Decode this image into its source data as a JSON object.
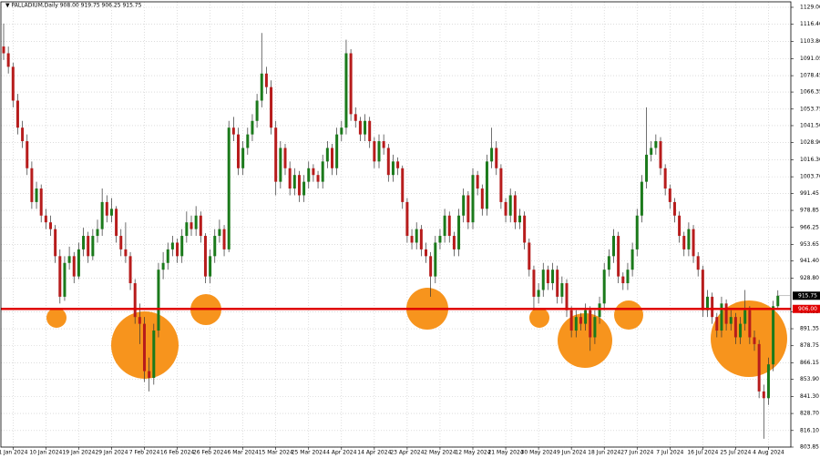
{
  "chart_data": {
    "type": "candlestick",
    "title": "▼ PALLADIUM,Daily  908.00 919.75 906.25 915.75",
    "up_color": "#1b7a1b",
    "down_color": "#b71c1c",
    "wick_color": "#333333",
    "grid": true,
    "ylim": [
      803.85,
      1129
    ],
    "yticks": [
      {
        "value": 1129,
        "label": "1129.00"
      },
      {
        "value": 1116.4,
        "label": "1116.40"
      },
      {
        "value": 1103.8,
        "label": "1103.80"
      },
      {
        "value": 1091.05,
        "label": "1091.05"
      },
      {
        "value": 1078.45,
        "label": "1078.45"
      },
      {
        "value": 1066.35,
        "label": "1066.35"
      },
      {
        "value": 1053.75,
        "label": "1053.75"
      },
      {
        "value": 1041.5,
        "label": "1041.50"
      },
      {
        "value": 1028.9,
        "label": "1028.90"
      },
      {
        "value": 1016.3,
        "label": "1016.30"
      },
      {
        "value": 1003.7,
        "label": "1003.70"
      },
      {
        "value": 991.45,
        "label": "991.45"
      },
      {
        "value": 978.85,
        "label": "978.85"
      },
      {
        "value": 966.25,
        "label": "966.25"
      },
      {
        "value": 953.65,
        "label": "953.65"
      },
      {
        "value": 941.4,
        "label": "941.40"
      },
      {
        "value": 928.8,
        "label": "928.80"
      },
      {
        "value": 903.95,
        "label": "903.95"
      },
      {
        "value": 891.35,
        "label": "891.35"
      },
      {
        "value": 878.75,
        "label": "878.75"
      },
      {
        "value": 866.15,
        "label": "866.15"
      },
      {
        "value": 853.9,
        "label": "853.90"
      },
      {
        "value": 841.3,
        "label": "841.30"
      },
      {
        "value": 828.7,
        "label": "828.70"
      },
      {
        "value": 816.1,
        "label": "816.10"
      },
      {
        "value": 803.85,
        "label": "803.85"
      }
    ],
    "hline": {
      "value": 906,
      "label": "906.00",
      "color": "#e00000"
    },
    "last_price": {
      "value": 915.75,
      "label": "915.75"
    },
    "categories": [
      null,
      null,
      "1 Jan 2024",
      null,
      null,
      null,
      null,
      null,
      null,
      "10 Jan 2024",
      null,
      null,
      null,
      null,
      null,
      null,
      "19 Jan 2024",
      null,
      null,
      null,
      null,
      null,
      null,
      "29 Jan 2024",
      null,
      null,
      null,
      null,
      null,
      null,
      "7 Feb 2024",
      null,
      null,
      null,
      null,
      null,
      null,
      "16 Feb 2024",
      null,
      null,
      null,
      null,
      null,
      null,
      "26 Feb 2024",
      null,
      null,
      null,
      null,
      null,
      null,
      "6 Mar 2024",
      null,
      null,
      null,
      null,
      null,
      null,
      "15 Mar 2024",
      null,
      null,
      null,
      null,
      null,
      null,
      "25 Mar 2024",
      null,
      null,
      null,
      null,
      null,
      null,
      "4 Apr 2024",
      null,
      null,
      null,
      null,
      null,
      null,
      "14 Apr 2024",
      null,
      null,
      null,
      null,
      null,
      null,
      "23 Apr 2024",
      null,
      null,
      null,
      null,
      null,
      null,
      "2 May 2024",
      null,
      null,
      null,
      null,
      null,
      null,
      "12 May 2024",
      null,
      null,
      null,
      null,
      null,
      null,
      "21 May 2024",
      null,
      null,
      null,
      null,
      null,
      null,
      "30 May 2024",
      null,
      null,
      null,
      null,
      null,
      null,
      "9 Jun 2024",
      null,
      null,
      null,
      null,
      null,
      null,
      "18 Jun 2024",
      null,
      null,
      null,
      null,
      null,
      null,
      "27 Jun 2024",
      null,
      null,
      null,
      null,
      null,
      null,
      "7 Jul 2024",
      null,
      null,
      null,
      null,
      null,
      null,
      "16 Jul 2024",
      null,
      null,
      null,
      null,
      null,
      null,
      "25 Jul 2024",
      null,
      null,
      null,
      null,
      null,
      null,
      "4 Aug 2024",
      null,
      null
    ],
    "candles": [
      [
        1100,
        1117,
        1090,
        1095
      ],
      [
        1095,
        1100,
        1080,
        1085
      ],
      [
        1085,
        1088,
        1055,
        1060
      ],
      [
        1060,
        1065,
        1035,
        1040
      ],
      [
        1040,
        1045,
        1025,
        1030
      ],
      [
        1030,
        1035,
        1005,
        1010
      ],
      [
        1010,
        1015,
        980,
        985
      ],
      [
        985,
        1000,
        980,
        995
      ],
      [
        995,
        998,
        970,
        975
      ],
      [
        975,
        980,
        965,
        970
      ],
      [
        970,
        975,
        960,
        965
      ],
      [
        965,
        968,
        940,
        945
      ],
      [
        945,
        950,
        910,
        915
      ],
      [
        915,
        945,
        912,
        940
      ],
      [
        940,
        952,
        935,
        945
      ],
      [
        945,
        948,
        925,
        930
      ],
      [
        930,
        955,
        928,
        950
      ],
      [
        950,
        966,
        945,
        960
      ],
      [
        960,
        963,
        940,
        945
      ],
      [
        945,
        965,
        942,
        960
      ],
      [
        960,
        972,
        955,
        965
      ],
      [
        965,
        995,
        960,
        985
      ],
      [
        985,
        990,
        970,
        975
      ],
      [
        975,
        988,
        970,
        980
      ],
      [
        980,
        982,
        955,
        960
      ],
      [
        960,
        965,
        945,
        950
      ],
      [
        950,
        970,
        940,
        945
      ],
      [
        945,
        948,
        920,
        925
      ],
      [
        925,
        928,
        895,
        900
      ],
      [
        900,
        910,
        880,
        895
      ],
      [
        895,
        900,
        852,
        860
      ],
      [
        860,
        870,
        845,
        855
      ],
      [
        855,
        895,
        850,
        890
      ],
      [
        890,
        940,
        885,
        935
      ],
      [
        935,
        948,
        928,
        940
      ],
      [
        940,
        955,
        935,
        950
      ],
      [
        950,
        960,
        945,
        955
      ],
      [
        955,
        958,
        940,
        945
      ],
      [
        945,
        965,
        940,
        960
      ],
      [
        960,
        978,
        955,
        970
      ],
      [
        970,
        975,
        960,
        965
      ],
      [
        965,
        982,
        960,
        975
      ],
      [
        975,
        978,
        955,
        960
      ],
      [
        960,
        962,
        925,
        930
      ],
      [
        930,
        950,
        925,
        945
      ],
      [
        945,
        965,
        940,
        960
      ],
      [
        960,
        972,
        955,
        965
      ],
      [
        965,
        968,
        945,
        950
      ],
      [
        950,
        1045,
        948,
        1040
      ],
      [
        1040,
        1048,
        1030,
        1035
      ],
      [
        1035,
        1040,
        1005,
        1010
      ],
      [
        1010,
        1030,
        1005,
        1025
      ],
      [
        1025,
        1040,
        1020,
        1035
      ],
      [
        1035,
        1050,
        1030,
        1045
      ],
      [
        1045,
        1065,
        1040,
        1060
      ],
      [
        1060,
        1110,
        1055,
        1080
      ],
      [
        1080,
        1085,
        1065,
        1070
      ],
      [
        1070,
        1075,
        1035,
        1040
      ],
      [
        1040,
        1045,
        990,
        1000
      ],
      [
        1000,
        1030,
        995,
        1025
      ],
      [
        1025,
        1028,
        1005,
        1010
      ],
      [
        1010,
        1015,
        990,
        995
      ],
      [
        995,
        1010,
        990,
        1005
      ],
      [
        1005,
        1008,
        985,
        990
      ],
      [
        990,
        1005,
        985,
        1000
      ],
      [
        1000,
        1015,
        995,
        1010
      ],
      [
        1010,
        1013,
        1000,
        1005
      ],
      [
        1005,
        1008,
        995,
        1000
      ],
      [
        1000,
        1020,
        995,
        1015
      ],
      [
        1015,
        1030,
        1010,
        1025
      ],
      [
        1025,
        1028,
        1005,
        1010
      ],
      [
        1010,
        1040,
        1005,
        1035
      ],
      [
        1035,
        1045,
        1030,
        1040
      ],
      [
        1040,
        1105,
        1035,
        1095
      ],
      [
        1095,
        1098,
        1045,
        1050
      ],
      [
        1050,
        1055,
        1040,
        1045
      ],
      [
        1045,
        1048,
        1030,
        1035
      ],
      [
        1035,
        1050,
        1030,
        1045
      ],
      [
        1045,
        1048,
        1025,
        1030
      ],
      [
        1030,
        1033,
        1010,
        1015
      ],
      [
        1015,
        1035,
        1010,
        1030
      ],
      [
        1030,
        1035,
        1020,
        1025
      ],
      [
        1025,
        1028,
        1000,
        1005
      ],
      [
        1005,
        1020,
        1000,
        1015
      ],
      [
        1015,
        1018,
        1005,
        1010
      ],
      [
        1010,
        1012,
        980,
        985
      ],
      [
        985,
        988,
        955,
        960
      ],
      [
        960,
        965,
        950,
        955
      ],
      [
        955,
        970,
        950,
        965
      ],
      [
        965,
        968,
        945,
        950
      ],
      [
        950,
        955,
        940,
        945
      ],
      [
        945,
        948,
        915,
        930
      ],
      [
        930,
        960,
        925,
        955
      ],
      [
        955,
        965,
        950,
        960
      ],
      [
        960,
        980,
        955,
        975
      ],
      [
        975,
        978,
        955,
        960
      ],
      [
        960,
        963,
        945,
        950
      ],
      [
        950,
        980,
        945,
        975
      ],
      [
        975,
        995,
        970,
        990
      ],
      [
        990,
        993,
        965,
        970
      ],
      [
        970,
        1010,
        965,
        1005
      ],
      [
        1005,
        1008,
        990,
        995
      ],
      [
        995,
        998,
        975,
        980
      ],
      [
        980,
        1020,
        975,
        1015
      ],
      [
        1015,
        1040,
        1010,
        1025
      ],
      [
        1025,
        1030,
        1005,
        1010
      ],
      [
        1010,
        1013,
        980,
        985
      ],
      [
        985,
        988,
        970,
        975
      ],
      [
        975,
        995,
        970,
        990
      ],
      [
        990,
        993,
        965,
        970
      ],
      [
        970,
        980,
        965,
        975
      ],
      [
        975,
        978,
        950,
        955
      ],
      [
        955,
        958,
        930,
        935
      ],
      [
        935,
        938,
        905,
        915
      ],
      [
        915,
        925,
        910,
        920
      ],
      [
        920,
        940,
        915,
        935
      ],
      [
        935,
        938,
        920,
        925
      ],
      [
        925,
        940,
        920,
        935
      ],
      [
        935,
        938,
        910,
        915
      ],
      [
        915,
        930,
        910,
        925
      ],
      [
        925,
        928,
        900,
        905
      ],
      [
        905,
        908,
        885,
        890
      ],
      [
        890,
        905,
        885,
        900
      ],
      [
        900,
        903,
        890,
        895
      ],
      [
        895,
        910,
        890,
        905
      ],
      [
        905,
        908,
        875,
        885
      ],
      [
        885,
        905,
        880,
        900
      ],
      [
        900,
        915,
        895,
        910
      ],
      [
        910,
        940,
        905,
        935
      ],
      [
        935,
        950,
        930,
        945
      ],
      [
        945,
        965,
        940,
        960
      ],
      [
        960,
        963,
        925,
        930
      ],
      [
        930,
        933,
        920,
        925
      ],
      [
        925,
        940,
        920,
        935
      ],
      [
        935,
        955,
        930,
        950
      ],
      [
        950,
        980,
        945,
        975
      ],
      [
        975,
        1005,
        970,
        1000
      ],
      [
        1000,
        1055,
        995,
        1020
      ],
      [
        1020,
        1030,
        1015,
        1025
      ],
      [
        1025,
        1035,
        1020,
        1030
      ],
      [
        1030,
        1033,
        1005,
        1010
      ],
      [
        1010,
        1013,
        990,
        995
      ],
      [
        995,
        998,
        980,
        985
      ],
      [
        985,
        988,
        970,
        975
      ],
      [
        975,
        978,
        955,
        960
      ],
      [
        960,
        963,
        945,
        950
      ],
      [
        950,
        970,
        945,
        965
      ],
      [
        965,
        968,
        940,
        945
      ],
      [
        945,
        948,
        930,
        935
      ],
      [
        935,
        938,
        900,
        905
      ],
      [
        905,
        920,
        900,
        915
      ],
      [
        915,
        918,
        895,
        900
      ],
      [
        900,
        903,
        885,
        890
      ],
      [
        890,
        915,
        885,
        910
      ],
      [
        910,
        913,
        890,
        895
      ],
      [
        895,
        905,
        890,
        900
      ],
      [
        900,
        903,
        880,
        885
      ],
      [
        885,
        900,
        880,
        895
      ],
      [
        895,
        920,
        890,
        905
      ],
      [
        905,
        908,
        880,
        885
      ],
      [
        885,
        890,
        875,
        880
      ],
      [
        880,
        883,
        840,
        845
      ],
      [
        845,
        850,
        810,
        840
      ],
      [
        840,
        870,
        835,
        865
      ],
      [
        865,
        912,
        860,
        908
      ],
      [
        908,
        919.75,
        906.25,
        915.75
      ]
    ]
  }
}
